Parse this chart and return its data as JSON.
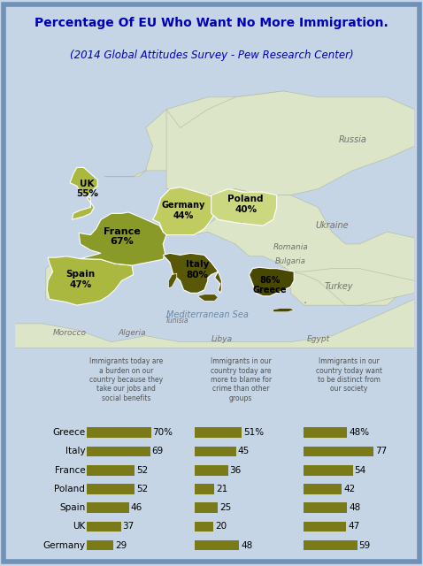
{
  "title1": "Percentage Of EU Who Want No More Immigration.",
  "title2": "(2014 Global Attitudes Survey - Pew Research Center)",
  "bg_color": "#c5d5e5",
  "map_bg": "#e8eef5",
  "bar_color": "#7a7a18",
  "countries": [
    "Greece",
    "Italy",
    "France",
    "Poland",
    "Spain",
    "UK",
    "Germany"
  ],
  "col1_label": "Immigrants today are\na burden on our\ncountry because they\ntake our jobs and\nsocial benefits",
  "col2_label": "Immigrants in our\ncountry today are\nmore to blame for\ncrime than other\ngroups",
  "col3_label": "Immigrants in our\ncountry today want\nto be distinct from\nour society",
  "col1_values": [
    70,
    69,
    52,
    52,
    46,
    37,
    29
  ],
  "col2_values": [
    51,
    45,
    36,
    21,
    25,
    20,
    48
  ],
  "col3_values": [
    48,
    77,
    54,
    42,
    48,
    47,
    59
  ],
  "col1_labels": [
    "70%",
    "69",
    "52",
    "52",
    "46",
    "37",
    "29"
  ],
  "col2_labels": [
    "51%",
    "45",
    "36",
    "21",
    "25",
    "20",
    "48"
  ],
  "col3_labels": [
    "48%",
    "77",
    "54",
    "42",
    "48",
    "47",
    "59"
  ],
  "map_countries": {
    "UK": {
      "pct": "55%",
      "color": "#aab840"
    },
    "France": {
      "pct": "67%",
      "color": "#8a9a28"
    },
    "Germany": {
      "pct": "44%",
      "color": "#c0cc60"
    },
    "Poland": {
      "pct": "40%",
      "color": "#ccd880"
    },
    "Spain": {
      "pct": "47%",
      "color": "#aab840"
    },
    "Italy": {
      "pct": "80%",
      "color": "#585808"
    },
    "Greece": {
      "pct": "86%",
      "color": "#484800"
    }
  },
  "title_color": "#0000bb",
  "label_color": "#505050",
  "map_xlim": [
    -14,
    44
  ],
  "map_ylim": [
    29,
    72
  ]
}
